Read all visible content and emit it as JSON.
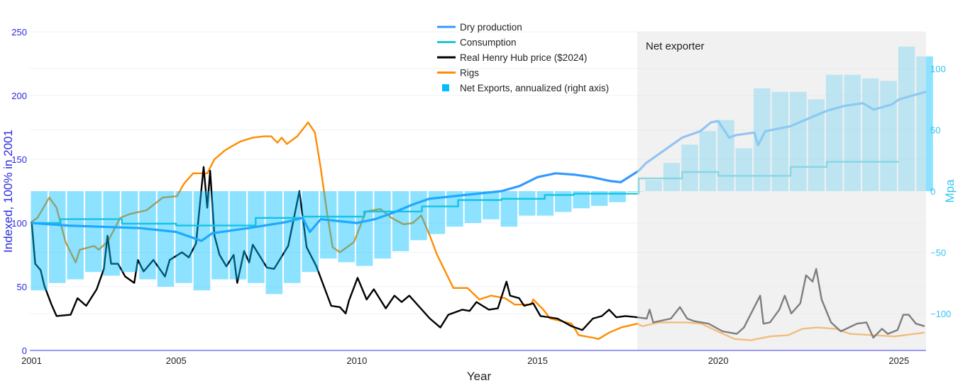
{
  "chart_data": {
    "type": "line",
    "xlabel": "Year",
    "ylabel": "Indexed, 100% in 2001",
    "y2label": "Mpa",
    "xlim": [
      2000.95,
      2025.75
    ],
    "ylim": [
      0,
      250
    ],
    "y2lim": [
      -130,
      130
    ],
    "x_ticks": [
      "2001",
      "2005",
      "2010",
      "2015",
      "2020",
      "2025"
    ],
    "y_ticks": [
      "0",
      "50",
      "100",
      "150",
      "200",
      "250"
    ],
    "y2_ticks": [
      "−100",
      "−50",
      "0",
      "50",
      "100"
    ],
    "grid": true,
    "legend_position": "top-center",
    "annotation": {
      "text": "Net exporter",
      "x_from": 2017.76,
      "x_to": 2025.75
    },
    "colors": {
      "production": "#3399ff",
      "consumption": "#22c7cf",
      "price": "#000000",
      "rigs": "#ff8c00",
      "exports": "#00bfff",
      "left_axis": "#2a2ae0",
      "right_axis": "#33c4f5",
      "shade": "#e6e6e6"
    },
    "series": [
      {
        "name": "Dry production",
        "axis": "left",
        "style": "line",
        "points": [
          [
            2001,
            100
          ],
          [
            2002,
            98
          ],
          [
            2003,
            97
          ],
          [
            2004,
            96
          ],
          [
            2005,
            93
          ],
          [
            2005.7,
            86
          ],
          [
            2006,
            92
          ],
          [
            2007,
            96
          ],
          [
            2008,
            100.5
          ],
          [
            2008.5,
            104
          ],
          [
            2008.7,
            93
          ],
          [
            2009,
            103
          ],
          [
            2010,
            100
          ],
          [
            2010.5,
            103
          ],
          [
            2011,
            108
          ],
          [
            2011.5,
            114
          ],
          [
            2012,
            119
          ],
          [
            2013,
            122
          ],
          [
            2014,
            125
          ],
          [
            2014.5,
            129
          ],
          [
            2015,
            136
          ],
          [
            2015.5,
            139
          ],
          [
            2016,
            138
          ],
          [
            2016.5,
            136
          ],
          [
            2017,
            133
          ],
          [
            2017.3,
            132
          ],
          [
            2017.8,
            141
          ],
          [
            2018,
            147
          ],
          [
            2018.5,
            157
          ],
          [
            2019,
            167
          ],
          [
            2019.5,
            172
          ],
          [
            2019.8,
            179
          ],
          [
            2020,
            180
          ],
          [
            2020.3,
            167
          ],
          [
            2020.5,
            169
          ],
          [
            2021,
            171
          ],
          [
            2021.1,
            161
          ],
          [
            2021.3,
            172
          ],
          [
            2022,
            176
          ],
          [
            2022.5,
            182
          ],
          [
            2023,
            188
          ],
          [
            2023.5,
            192
          ],
          [
            2024,
            194
          ],
          [
            2024.3,
            189
          ],
          [
            2024.8,
            193
          ],
          [
            2025,
            197
          ],
          [
            2025.75,
            203
          ]
        ]
      },
      {
        "name": "Consumption",
        "axis": "left",
        "style": "step",
        "points": [
          [
            2001,
            100
          ],
          [
            2001.8,
            103
          ],
          [
            2003.5,
            99.5
          ],
          [
            2005,
            98
          ],
          [
            2007.2,
            104
          ],
          [
            2008.5,
            105
          ],
          [
            2010.2,
            109
          ],
          [
            2011.8,
            113
          ],
          [
            2012.8,
            118
          ],
          [
            2014,
            119
          ],
          [
            2015.2,
            122
          ],
          [
            2016,
            123
          ],
          [
            2017.8,
            135
          ],
          [
            2019,
            140
          ],
          [
            2020,
            137
          ],
          [
            2022,
            144
          ],
          [
            2023,
            148
          ],
          [
            2025,
            148
          ]
        ]
      },
      {
        "name": "Real Henry Hub price ($2024)",
        "axis": "left",
        "style": "line",
        "points": [
          [
            2001,
            101
          ],
          [
            2001.1,
            68
          ],
          [
            2001.25,
            63
          ],
          [
            2001.35,
            51
          ],
          [
            2001.55,
            36
          ],
          [
            2001.69,
            27
          ],
          [
            2002.08,
            28
          ],
          [
            2002.27,
            41
          ],
          [
            2002.51,
            35
          ],
          [
            2002.8,
            48
          ],
          [
            2003,
            64
          ],
          [
            2003.1,
            90
          ],
          [
            2003.2,
            68
          ],
          [
            2003.39,
            68
          ],
          [
            2003.59,
            58
          ],
          [
            2003.84,
            53
          ],
          [
            2003.94,
            71
          ],
          [
            2004.1,
            62
          ],
          [
            2004.37,
            71
          ],
          [
            2004.69,
            58
          ],
          [
            2004.82,
            71
          ],
          [
            2005.16,
            77
          ],
          [
            2005.35,
            73
          ],
          [
            2005.55,
            84
          ],
          [
            2005.76,
            144
          ],
          [
            2005.86,
            112
          ],
          [
            2005.94,
            141
          ],
          [
            2006.06,
            90
          ],
          [
            2006.2,
            75
          ],
          [
            2006.39,
            66
          ],
          [
            2006.59,
            75
          ],
          [
            2006.69,
            53
          ],
          [
            2006.88,
            78
          ],
          [
            2007.02,
            69
          ],
          [
            2007.12,
            83
          ],
          [
            2007.51,
            65
          ],
          [
            2007.71,
            64
          ],
          [
            2008.1,
            82
          ],
          [
            2008.41,
            125
          ],
          [
            2008.61,
            81
          ],
          [
            2008.88,
            66
          ],
          [
            2009.29,
            35
          ],
          [
            2009.53,
            34
          ],
          [
            2009.69,
            29
          ],
          [
            2009.78,
            39
          ],
          [
            2010.02,
            57
          ],
          [
            2010.27,
            40
          ],
          [
            2010.47,
            48
          ],
          [
            2010.8,
            33
          ],
          [
            2011.04,
            43
          ],
          [
            2011.24,
            38
          ],
          [
            2011.45,
            43
          ],
          [
            2012.02,
            25
          ],
          [
            2012.31,
            18
          ],
          [
            2012.53,
            28
          ],
          [
            2012.92,
            32
          ],
          [
            2013.12,
            31
          ],
          [
            2013.31,
            38
          ],
          [
            2013.65,
            32
          ],
          [
            2013.9,
            33
          ],
          [
            2014.14,
            54
          ],
          [
            2014.24,
            43
          ],
          [
            2014.49,
            41
          ],
          [
            2014.63,
            35
          ],
          [
            2014.88,
            37
          ],
          [
            2015.08,
            27
          ],
          [
            2015.55,
            25
          ],
          [
            2015.94,
            19
          ],
          [
            2016.24,
            16
          ],
          [
            2016.53,
            25
          ],
          [
            2016.78,
            27
          ],
          [
            2016.98,
            32
          ],
          [
            2017.18,
            26
          ],
          [
            2017.43,
            27
          ],
          [
            2017.76,
            26
          ],
          [
            2018.02,
            25
          ],
          [
            2018.1,
            32
          ],
          [
            2018.2,
            22
          ],
          [
            2018.69,
            25
          ],
          [
            2018.94,
            34
          ],
          [
            2019.14,
            25
          ],
          [
            2019.33,
            23
          ],
          [
            2019.73,
            21
          ],
          [
            2020.12,
            15
          ],
          [
            2020.51,
            13
          ],
          [
            2020.71,
            18
          ],
          [
            2021.16,
            43
          ],
          [
            2021.25,
            21
          ],
          [
            2021.43,
            22
          ],
          [
            2021.69,
            32
          ],
          [
            2021.84,
            43
          ],
          [
            2022.02,
            29
          ],
          [
            2022.27,
            37
          ],
          [
            2022.43,
            59
          ],
          [
            2022.61,
            54
          ],
          [
            2022.71,
            64
          ],
          [
            2022.86,
            40
          ],
          [
            2023.12,
            22
          ],
          [
            2023.39,
            15
          ],
          [
            2023.84,
            21
          ],
          [
            2024.1,
            22
          ],
          [
            2024.29,
            10
          ],
          [
            2024.53,
            17
          ],
          [
            2024.69,
            13
          ],
          [
            2024.96,
            16
          ],
          [
            2025.12,
            28
          ],
          [
            2025.27,
            28
          ],
          [
            2025.47,
            21
          ],
          [
            2025.71,
            19
          ]
        ]
      },
      {
        "name": "Rigs",
        "axis": "left",
        "style": "line",
        "points": [
          [
            2001,
            101
          ],
          [
            2001.16,
            104
          ],
          [
            2001.49,
            120
          ],
          [
            2001.69,
            112
          ],
          [
            2001.94,
            85
          ],
          [
            2002.22,
            69
          ],
          [
            2002.33,
            79
          ],
          [
            2002.73,
            82
          ],
          [
            2002.86,
            79
          ],
          [
            2003.12,
            86
          ],
          [
            2003.45,
            104
          ],
          [
            2003.71,
            107
          ],
          [
            2004.18,
            110
          ],
          [
            2004.63,
            120
          ],
          [
            2005.02,
            121
          ],
          [
            2005.22,
            131
          ],
          [
            2005.47,
            139
          ],
          [
            2005.86,
            139
          ],
          [
            2006.06,
            150
          ],
          [
            2006.35,
            157
          ],
          [
            2006.59,
            161
          ],
          [
            2006.78,
            164
          ],
          [
            2007.12,
            167
          ],
          [
            2007.43,
            168
          ],
          [
            2007.63,
            168
          ],
          [
            2007.8,
            163
          ],
          [
            2007.92,
            167
          ],
          [
            2008.06,
            162
          ],
          [
            2008.35,
            168
          ],
          [
            2008.65,
            179
          ],
          [
            2008.84,
            171
          ],
          [
            2009,
            143
          ],
          [
            2009.18,
            107
          ],
          [
            2009.33,
            81
          ],
          [
            2009.53,
            77
          ],
          [
            2009.92,
            85
          ],
          [
            2010.25,
            109
          ],
          [
            2010.65,
            111
          ],
          [
            2010.96,
            104
          ],
          [
            2011.29,
            99
          ],
          [
            2011.55,
            100
          ],
          [
            2011.78,
            106
          ],
          [
            2012.02,
            90
          ],
          [
            2012.22,
            75
          ],
          [
            2012.67,
            49
          ],
          [
            2013.06,
            49
          ],
          [
            2013.39,
            40
          ],
          [
            2013.71,
            43
          ],
          [
            2014.1,
            41
          ],
          [
            2014.37,
            36
          ],
          [
            2014.82,
            36
          ],
          [
            2014.88,
            40
          ],
          [
            2015.16,
            32
          ],
          [
            2015.35,
            25
          ],
          [
            2015.67,
            23
          ],
          [
            2015.94,
            21
          ],
          [
            2016.14,
            12
          ],
          [
            2016.53,
            10
          ],
          [
            2016.69,
            9
          ],
          [
            2016.98,
            14
          ],
          [
            2017.31,
            18
          ],
          [
            2017.76,
            21
          ],
          [
            2017.9,
            19
          ],
          [
            2018.35,
            22
          ],
          [
            2019.08,
            22
          ],
          [
            2019.53,
            21
          ],
          [
            2019.98,
            15
          ],
          [
            2020.45,
            9
          ],
          [
            2020.9,
            8
          ],
          [
            2021.43,
            11
          ],
          [
            2021.94,
            12
          ],
          [
            2022.33,
            17
          ],
          [
            2022.73,
            18
          ],
          [
            2023.25,
            17
          ],
          [
            2023.65,
            13
          ],
          [
            2024.29,
            12
          ],
          [
            2024.88,
            11
          ],
          [
            2025.71,
            14
          ]
        ]
      },
      {
        "name": "Net Exports, annualized (right axis)",
        "axis": "right",
        "style": "bar",
        "points": [
          [
            2001,
            -81
          ],
          [
            2001.5,
            -75
          ],
          [
            2002,
            -72
          ],
          [
            2002.5,
            -66
          ],
          [
            2003,
            -69
          ],
          [
            2003.5,
            -66
          ],
          [
            2004,
            -72
          ],
          [
            2004.5,
            -78
          ],
          [
            2005,
            -75
          ],
          [
            2005.5,
            -81
          ],
          [
            2006,
            -72
          ],
          [
            2006.5,
            -72
          ],
          [
            2007,
            -75
          ],
          [
            2007.5,
            -84
          ],
          [
            2008,
            -75
          ],
          [
            2008.5,
            -66
          ],
          [
            2009,
            -55
          ],
          [
            2009.5,
            -58
          ],
          [
            2010,
            -61
          ],
          [
            2010.5,
            -55
          ],
          [
            2011,
            -49
          ],
          [
            2011.5,
            -40
          ],
          [
            2012,
            -35
          ],
          [
            2012.5,
            -29
          ],
          [
            2013,
            -26
          ],
          [
            2013.5,
            -23
          ],
          [
            2014,
            -29
          ],
          [
            2014.5,
            -20
          ],
          [
            2015,
            -20
          ],
          [
            2015.5,
            -17
          ],
          [
            2016,
            -14
          ],
          [
            2016.5,
            -12
          ],
          [
            2017,
            -9
          ],
          [
            2017.5,
            0
          ],
          [
            2018,
            9
          ],
          [
            2018.5,
            23
          ],
          [
            2019,
            38
          ],
          [
            2019.5,
            49
          ],
          [
            2020,
            58
          ],
          [
            2020.5,
            35
          ],
          [
            2021,
            84
          ],
          [
            2021.5,
            81
          ],
          [
            2022,
            81
          ],
          [
            2022.5,
            75
          ],
          [
            2023,
            95
          ],
          [
            2023.5,
            95
          ],
          [
            2024,
            92
          ],
          [
            2024.5,
            90
          ],
          [
            2025,
            118
          ],
          [
            2025.5,
            110
          ]
        ]
      }
    ]
  }
}
